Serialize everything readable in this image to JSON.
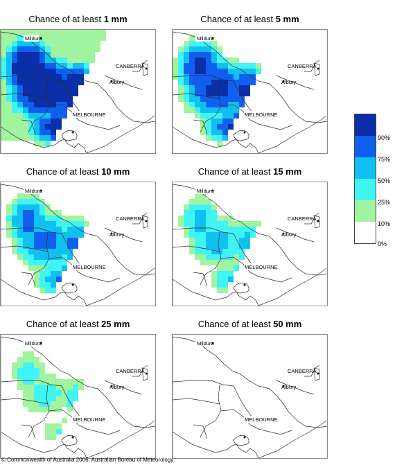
{
  "panels": [
    {
      "prefix": "Chance of at least ",
      "amount": "1 mm"
    },
    {
      "prefix": "Chance of at least ",
      "amount": "5 mm"
    },
    {
      "prefix": "Chance of at least ",
      "amount": "10 mm"
    },
    {
      "prefix": "Chance of at least ",
      "amount": "15 mm"
    },
    {
      "prefix": "Chance of at least ",
      "amount": "25 mm"
    },
    {
      "prefix": "Chance of at least ",
      "amount": "50 mm"
    }
  ],
  "map_labels": {
    "mildura": "Mildura",
    "canberra": "CANBERRA",
    "albury": "Albury",
    "melbourne": "MELBOURNE"
  },
  "legend": {
    "ticks": [
      "90%",
      "75%",
      "50%",
      "25%",
      "10%",
      "0%"
    ],
    "colors": [
      "#0a2fa8",
      "#1060f0",
      "#10c0f0",
      "#40f4f4",
      "#a0f4a0",
      "#ffffff"
    ]
  },
  "copyright": "© Commonwealth of Australia 2006, Australian Bureau of Meteorology"
}
